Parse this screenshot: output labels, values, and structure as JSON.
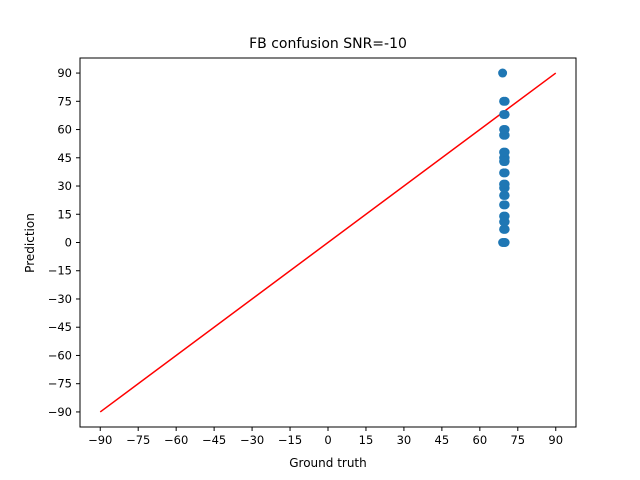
{
  "chart_data": {
    "type": "scatter",
    "title": "FB confusion SNR=-10",
    "xlabel": "Ground truth",
    "ylabel": "Prediction",
    "xlim": [
      -98,
      98
    ],
    "ylim": [
      -98,
      98
    ],
    "xticks": [
      -90,
      -75,
      -60,
      -45,
      -30,
      -15,
      0,
      15,
      30,
      45,
      60,
      75,
      90
    ],
    "yticks": [
      -90,
      -75,
      -60,
      -45,
      -30,
      -15,
      0,
      15,
      30,
      45,
      60,
      75,
      90
    ],
    "xtick_labels": [
      "−90",
      "−75",
      "−60",
      "−45",
      "−30",
      "−15",
      "0",
      "15",
      "30",
      "45",
      "60",
      "75",
      "90"
    ],
    "ytick_labels": [
      "−90",
      "−75",
      "−60",
      "−45",
      "−30",
      "−15",
      "0",
      "15",
      "30",
      "45",
      "60",
      "75",
      "90"
    ],
    "grid": false,
    "reference_line": {
      "x": [
        -90,
        90
      ],
      "y": [
        -90,
        90
      ],
      "color": "#ff0000"
    },
    "point_color": "#1f77b4",
    "points": [
      [
        69,
        0
      ],
      [
        70,
        0
      ],
      [
        69.6,
        0
      ],
      [
        70,
        7
      ],
      [
        69.4,
        7
      ],
      [
        70,
        11
      ],
      [
        69.4,
        11
      ],
      [
        70,
        14
      ],
      [
        69.4,
        14
      ],
      [
        70,
        20
      ],
      [
        69.4,
        20
      ],
      [
        70,
        25
      ],
      [
        69.4,
        25
      ],
      [
        70,
        29
      ],
      [
        69.4,
        29
      ],
      [
        70,
        31
      ],
      [
        69.4,
        31
      ],
      [
        70,
        37
      ],
      [
        69.4,
        37
      ],
      [
        70,
        43
      ],
      [
        69.4,
        43
      ],
      [
        70,
        45
      ],
      [
        69.4,
        45
      ],
      [
        70,
        48
      ],
      [
        69.4,
        48
      ],
      [
        70,
        57
      ],
      [
        69.4,
        57
      ],
      [
        70,
        60
      ],
      [
        69.4,
        60
      ],
      [
        70,
        68
      ],
      [
        69.4,
        68
      ],
      [
        70,
        75
      ],
      [
        69.4,
        75
      ],
      [
        69,
        90
      ]
    ]
  }
}
